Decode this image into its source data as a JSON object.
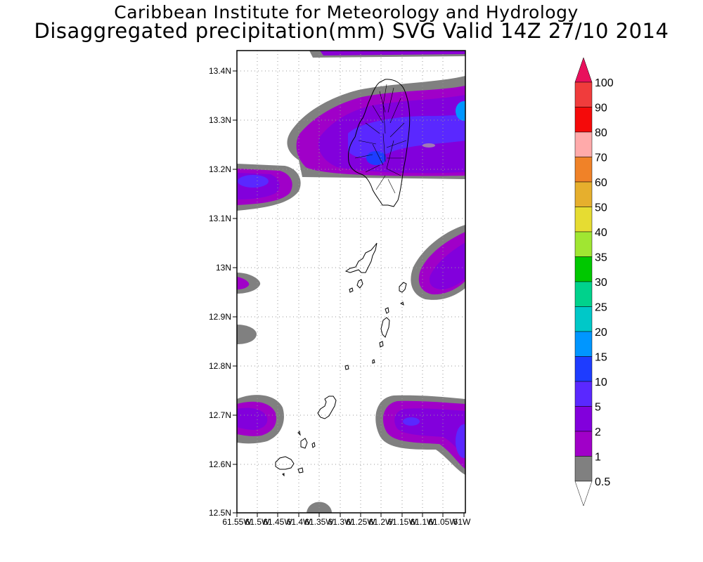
{
  "title": {
    "line1": "Caribbean Institute for Meteorology and Hydrology",
    "line2": "Disaggregated precipitation(mm) SVG Valid 14Z 27/10 2014"
  },
  "map": {
    "lat_labels": [
      "13.4N",
      "13.3N",
      "13.2N",
      "13.1N",
      "13N",
      "12.9N",
      "12.8N",
      "12.7N",
      "12.6N",
      "12.5N"
    ],
    "lon_labels": [
      "61.55W",
      "61.5W",
      "61.45W",
      "61.4W",
      "61.35W",
      "61.3W",
      "61.25W",
      "61.2W",
      "61.15W",
      "61.1W",
      "61.05W",
      "61W"
    ],
    "lat_range": [
      12.5,
      13.44
    ],
    "lon_range": [
      -61.55,
      -61.0
    ],
    "grid": "dotted"
  },
  "legend": {
    "levels": [
      "100",
      "90",
      "80",
      "70",
      "60",
      "50",
      "40",
      "35",
      "30",
      "25",
      "20",
      "15",
      "10",
      "5",
      "2",
      "1",
      "0.5"
    ],
    "colors": [
      "#e8105c",
      "#f03c3c",
      "#f50a0a",
      "#ffaaaa",
      "#f08228",
      "#e6af2d",
      "#e6dc32",
      "#a0e632",
      "#00c800",
      "#00d28c",
      "#00c8c8",
      "#0096ff",
      "#1e3cff",
      "#5a28ff",
      "#8200dc",
      "#a000c8",
      "#808080"
    ]
  },
  "colors": {
    "shade_05": "#808080",
    "shade_1": "#a000c8",
    "shade_2": "#8200dc",
    "shade_5": "#5a28ff",
    "shade_15": "#0096ff",
    "coast": "#000000"
  }
}
